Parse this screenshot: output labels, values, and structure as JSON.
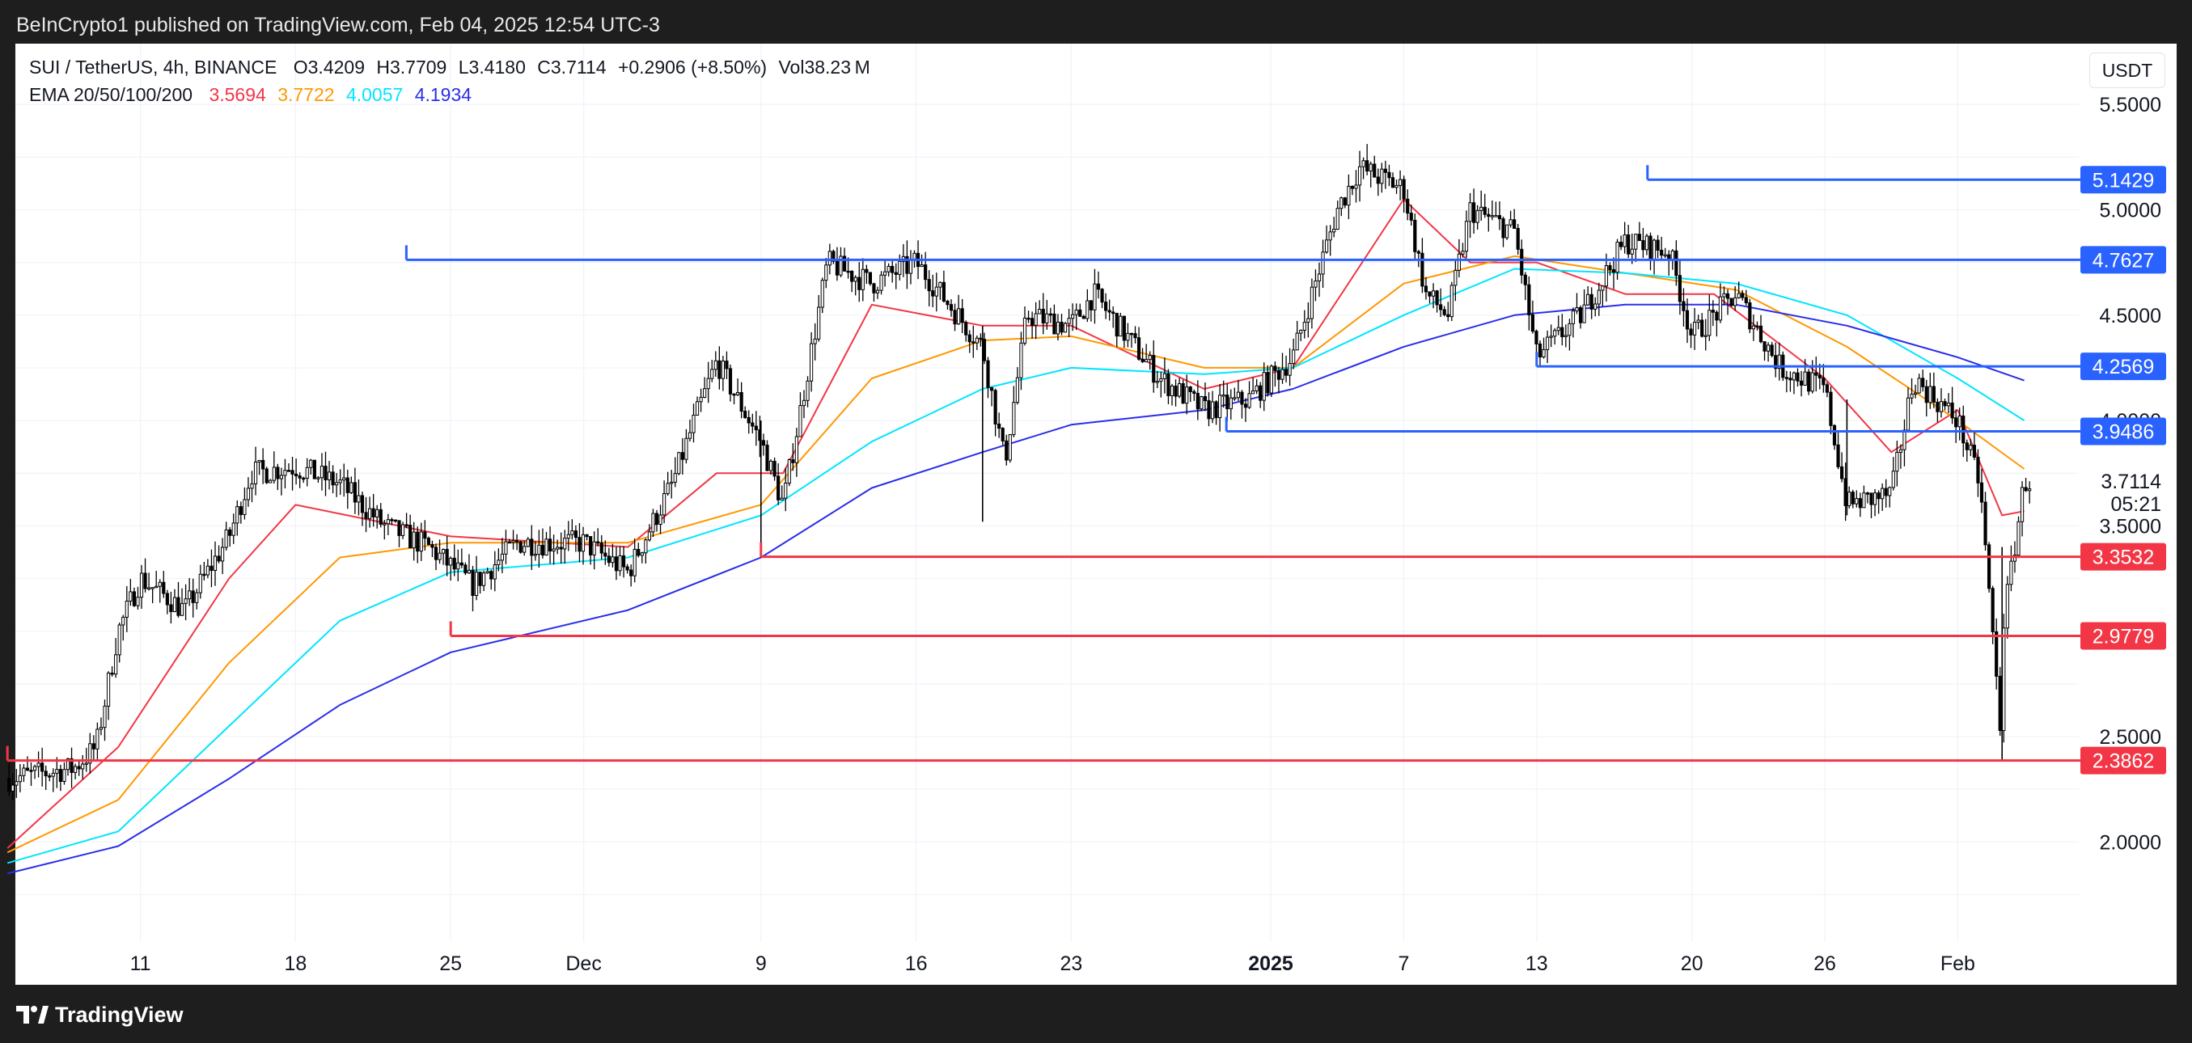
{
  "header": {
    "publisher_text": "BeInCrypto1 published on TradingView.com, Feb 04, 2025 12:54 UTC-3"
  },
  "footer": {
    "brand": "TradingView"
  },
  "chart_header": {
    "symbol": "SUI / TetherUS, 4h, BINANCE",
    "open": "O3.4209",
    "high": "H3.7709",
    "low": "L3.4180",
    "close": "C3.7114",
    "change": "+0.2906 (+8.50%)",
    "volume": "Vol38.23 M",
    "ema_label": "EMA 20/50/100/200",
    "ema_values": [
      "3.5694",
      "3.7722",
      "4.0057",
      "4.1934"
    ],
    "ema_colors": [
      "#f23645",
      "#ff9800",
      "#00e5ff",
      "#2a2ee8"
    ]
  },
  "price_axis": {
    "unit": "USDT",
    "ticks": [
      "5.5000",
      "5.0000",
      "4.5000",
      "4.0000",
      "3.5000",
      "2.5000",
      "2.0000"
    ],
    "last_price": "3.7114",
    "countdown": "05:21"
  },
  "time_axis": {
    "labels": [
      "11",
      "18",
      "25",
      "Dec",
      "9",
      "16",
      "23",
      "2025",
      "7",
      "13",
      "20",
      "26",
      "Feb"
    ]
  },
  "chart_data": {
    "type": "candlestick",
    "title": "SUI / TetherUS, 4h, BINANCE",
    "ylabel": "USDT",
    "ylim": [
      1.5,
      5.5
    ],
    "x_range": [
      "2024-11-05",
      "2025-02-04"
    ],
    "grid": true,
    "levels": [
      {
        "price": 5.1429,
        "label": "5.1429",
        "color": "#2962ff",
        "start": "2025-01-18"
      },
      {
        "price": 4.7627,
        "label": "4.7627",
        "color": "#2962ff",
        "start": "2024-11-23"
      },
      {
        "price": 4.2569,
        "label": "4.2569",
        "color": "#2962ff",
        "start": "2025-01-13"
      },
      {
        "price": 3.9486,
        "label": "3.9486",
        "color": "#2962ff",
        "start": "2024-12-30"
      },
      {
        "price": 3.3532,
        "label": "3.3532",
        "color": "#f23645",
        "start": "2024-12-09"
      },
      {
        "price": 2.9779,
        "label": "2.9779",
        "color": "#f23645",
        "start": "2024-11-25"
      },
      {
        "price": 2.3862,
        "label": "2.3862",
        "color": "#f23645",
        "start": "2024-11-05"
      }
    ],
    "price_path": [
      [
        "2024-11-05",
        2.3
      ],
      [
        "2024-11-08",
        2.35
      ],
      [
        "2024-11-09",
        2.45
      ],
      [
        "2024-11-10",
        3.0
      ],
      [
        "2024-11-11",
        3.25
      ],
      [
        "2024-11-13",
        3.1
      ],
      [
        "2024-11-15",
        3.45
      ],
      [
        "2024-11-16",
        3.75
      ],
      [
        "2024-11-18",
        3.78
      ],
      [
        "2024-11-20",
        3.7
      ],
      [
        "2024-11-22",
        3.5
      ],
      [
        "2024-11-24",
        3.4
      ],
      [
        "2024-11-26",
        3.22
      ],
      [
        "2024-11-28",
        3.42
      ],
      [
        "2024-12-01",
        3.42
      ],
      [
        "2024-12-03",
        3.28
      ],
      [
        "2024-12-05",
        3.7
      ],
      [
        "2024-12-06",
        4.0
      ],
      [
        "2024-12-07",
        4.28
      ],
      [
        "2024-12-09",
        3.9
      ],
      [
        "2024-12-10",
        3.6
      ],
      [
        "2024-12-12",
        4.75
      ],
      [
        "2024-12-14",
        4.65
      ],
      [
        "2024-12-16",
        4.75
      ],
      [
        "2024-12-19",
        4.35
      ],
      [
        "2024-12-20",
        3.8
      ],
      [
        "2024-12-21",
        4.5
      ],
      [
        "2024-12-23",
        4.45
      ],
      [
        "2024-12-24",
        4.6
      ],
      [
        "2024-12-27",
        4.2
      ],
      [
        "2024-12-29",
        4.05
      ],
      [
        "2024-12-31",
        4.1
      ],
      [
        "2025-01-02",
        4.3
      ],
      [
        "2025-01-04",
        5.0
      ],
      [
        "2025-01-05",
        5.2
      ],
      [
        "2025-01-07",
        5.1
      ],
      [
        "2025-01-08",
        4.6
      ],
      [
        "2025-01-09",
        4.5
      ],
      [
        "2025-01-10",
        5.0
      ],
      [
        "2025-01-12",
        4.9
      ],
      [
        "2025-01-13",
        4.3
      ],
      [
        "2025-01-15",
        4.5
      ],
      [
        "2025-01-17",
        4.85
      ],
      [
        "2025-01-19",
        4.8
      ],
      [
        "2025-01-20",
        4.4
      ],
      [
        "2025-01-22",
        4.6
      ],
      [
        "2025-01-24",
        4.25
      ],
      [
        "2025-01-26",
        4.15
      ],
      [
        "2025-01-27",
        3.6
      ],
      [
        "2025-01-29",
        3.65
      ],
      [
        "2025-01-30",
        4.2
      ],
      [
        "2025-02-01",
        4.0
      ],
      [
        "2025-02-02",
        3.7
      ],
      [
        "2025-02-03",
        2.45
      ],
      [
        "2025-02-03",
        3.0
      ],
      [
        "2025-02-04",
        3.71
      ]
    ],
    "ema": [
      {
        "name": "EMA 20",
        "color": "#f23645",
        "path": [
          [
            "2024-11-05",
            1.97
          ],
          [
            "2024-11-10",
            2.45
          ],
          [
            "2024-11-15",
            3.25
          ],
          [
            "2024-11-18",
            3.6
          ],
          [
            "2024-11-25",
            3.45
          ],
          [
            "2024-12-03",
            3.4
          ],
          [
            "2024-12-07",
            3.75
          ],
          [
            "2024-12-10",
            3.75
          ],
          [
            "2024-12-14",
            4.55
          ],
          [
            "2024-12-19",
            4.45
          ],
          [
            "2024-12-23",
            4.45
          ],
          [
            "2024-12-29",
            4.15
          ],
          [
            "2025-01-02",
            4.25
          ],
          [
            "2025-01-07",
            5.05
          ],
          [
            "2025-01-10",
            4.75
          ],
          [
            "2025-01-13",
            4.75
          ],
          [
            "2025-01-17",
            4.6
          ],
          [
            "2025-01-21",
            4.6
          ],
          [
            "2025-01-26",
            4.2
          ],
          [
            "2025-01-29",
            3.85
          ],
          [
            "2025-02-01",
            4.05
          ],
          [
            "2025-02-03",
            3.55
          ],
          [
            "2025-02-04",
            3.57
          ]
        ]
      },
      {
        "name": "EMA 50",
        "color": "#ff9800",
        "path": [
          [
            "2024-11-05",
            1.95
          ],
          [
            "2024-11-10",
            2.2
          ],
          [
            "2024-11-15",
            2.85
          ],
          [
            "2024-11-20",
            3.35
          ],
          [
            "2024-11-25",
            3.42
          ],
          [
            "2024-12-03",
            3.42
          ],
          [
            "2024-12-09",
            3.6
          ],
          [
            "2024-12-14",
            4.2
          ],
          [
            "2024-12-19",
            4.38
          ],
          [
            "2024-12-23",
            4.4
          ],
          [
            "2024-12-29",
            4.25
          ],
          [
            "2025-01-02",
            4.25
          ],
          [
            "2025-01-07",
            4.65
          ],
          [
            "2025-01-12",
            4.78
          ],
          [
            "2025-01-17",
            4.7
          ],
          [
            "2025-01-22",
            4.62
          ],
          [
            "2025-01-27",
            4.35
          ],
          [
            "2025-02-01",
            4.0
          ],
          [
            "2025-02-04",
            3.77
          ]
        ]
      },
      {
        "name": "EMA 100",
        "color": "#00e5ff",
        "path": [
          [
            "2024-11-05",
            1.9
          ],
          [
            "2024-11-10",
            2.05
          ],
          [
            "2024-11-15",
            2.55
          ],
          [
            "2024-11-20",
            3.05
          ],
          [
            "2024-11-25",
            3.28
          ],
          [
            "2024-12-03",
            3.35
          ],
          [
            "2024-12-09",
            3.55
          ],
          [
            "2024-12-14",
            3.9
          ],
          [
            "2024-12-19",
            4.15
          ],
          [
            "2024-12-23",
            4.25
          ],
          [
            "2024-12-29",
            4.22
          ],
          [
            "2025-01-02",
            4.25
          ],
          [
            "2025-01-07",
            4.5
          ],
          [
            "2025-01-12",
            4.72
          ],
          [
            "2025-01-17",
            4.7
          ],
          [
            "2025-01-22",
            4.65
          ],
          [
            "2025-01-27",
            4.5
          ],
          [
            "2025-02-01",
            4.2
          ],
          [
            "2025-02-04",
            4.0
          ]
        ]
      },
      {
        "name": "EMA 200",
        "color": "#2a2ee8",
        "path": [
          [
            "2024-11-05",
            1.85
          ],
          [
            "2024-11-10",
            1.98
          ],
          [
            "2024-11-15",
            2.3
          ],
          [
            "2024-11-20",
            2.65
          ],
          [
            "2024-11-25",
            2.9
          ],
          [
            "2024-12-03",
            3.1
          ],
          [
            "2024-12-09",
            3.35
          ],
          [
            "2024-12-14",
            3.68
          ],
          [
            "2024-12-19",
            3.85
          ],
          [
            "2024-12-23",
            3.98
          ],
          [
            "2024-12-29",
            4.05
          ],
          [
            "2025-01-02",
            4.15
          ],
          [
            "2025-01-07",
            4.35
          ],
          [
            "2025-01-12",
            4.5
          ],
          [
            "2025-01-17",
            4.55
          ],
          [
            "2025-01-22",
            4.55
          ],
          [
            "2025-01-27",
            4.45
          ],
          [
            "2025-02-01",
            4.3
          ],
          [
            "2025-02-04",
            4.19
          ]
        ]
      }
    ]
  }
}
